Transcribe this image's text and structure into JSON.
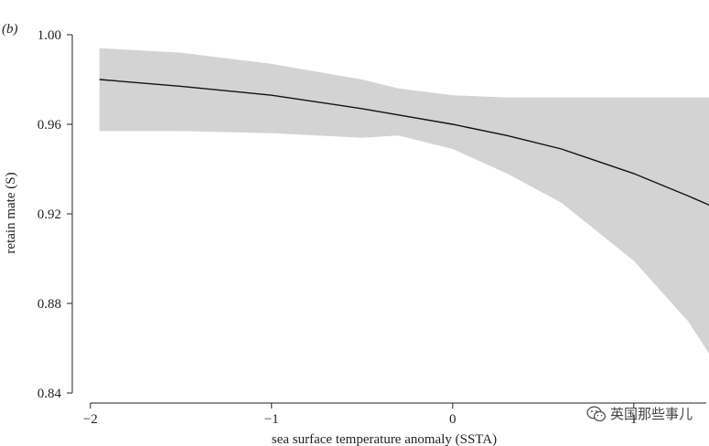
{
  "panel_label": "(b)",
  "watermark": {
    "text": "英国那些事儿",
    "icon": "wechat-icon"
  },
  "chart_data": {
    "type": "line",
    "title": "",
    "xlabel": "sea surface temperature anomaly (SSTA)",
    "ylabel": "retain mate (S)",
    "xlim": [
      -2.1,
      1.4
    ],
    "ylim": [
      0.84,
      1.0
    ],
    "x_ticks": [
      -2,
      -1,
      0,
      1
    ],
    "x_tick_labels": [
      "−2",
      "−1",
      "0",
      "1"
    ],
    "y_ticks": [
      0.84,
      0.88,
      0.92,
      0.96,
      1.0
    ],
    "y_tick_labels": [
      "0.84",
      "0.88",
      "0.92",
      "0.96",
      "1.00"
    ],
    "grid": false,
    "line_color": "#111111",
    "band_color": "#d3d3d3",
    "series": [
      {
        "x": [
          -1.95,
          -1.5,
          -1.0,
          -0.5,
          0.0,
          0.3,
          0.6,
          1.0,
          1.3,
          1.5
        ],
        "values": [
          0.98,
          0.977,
          0.973,
          0.967,
          0.96,
          0.955,
          0.949,
          0.938,
          0.928,
          0.921
        ]
      }
    ],
    "confidence_band": {
      "x": [
        -1.95,
        -1.5,
        -1.0,
        -0.5,
        -0.3,
        0.0,
        0.3,
        0.6,
        1.0,
        1.3,
        1.5
      ],
      "upper": [
        0.994,
        0.992,
        0.987,
        0.98,
        0.976,
        0.973,
        0.972,
        0.972,
        0.972,
        0.972,
        0.972
      ],
      "lower": [
        0.957,
        0.957,
        0.956,
        0.954,
        0.955,
        0.949,
        0.938,
        0.925,
        0.899,
        0.872,
        0.847
      ]
    }
  }
}
